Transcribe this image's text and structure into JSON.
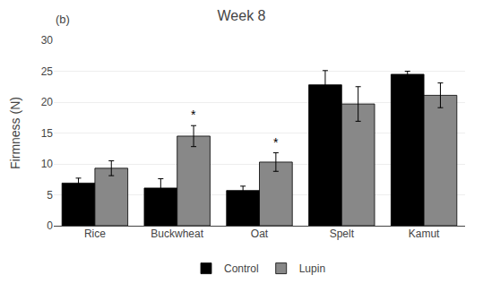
{
  "chart_data": {
    "type": "bar",
    "title": "Week 8",
    "ylabel": "Firmness (N)",
    "categories": [
      "Rice",
      "Buckwheat",
      "Oat",
      "Spelt",
      "Kamut"
    ],
    "series": [
      {
        "name": "Control",
        "color": "#000000",
        "values": [
          6.9,
          6.1,
          5.7,
          22.8,
          24.5
        ],
        "errors": [
          0.8,
          1.5,
          0.7,
          2.3,
          0.5
        ]
      },
      {
        "name": "Lupin",
        "color": "#888888",
        "values": [
          9.3,
          14.5,
          10.3,
          19.7,
          21.1
        ],
        "errors": [
          1.2,
          1.7,
          1.5,
          2.8,
          2.0
        ]
      }
    ],
    "annotations": [
      {
        "text": "(b)"
      },
      {
        "text": "*",
        "category": "Buckwheat",
        "series": "Lupin"
      },
      {
        "text": "*",
        "category": "Oat",
        "series": "Lupin"
      }
    ],
    "ylim": [
      0,
      30
    ],
    "yticks": [
      0,
      5,
      10,
      15,
      20,
      25,
      30
    ],
    "grid": true,
    "legend": "bottom"
  }
}
